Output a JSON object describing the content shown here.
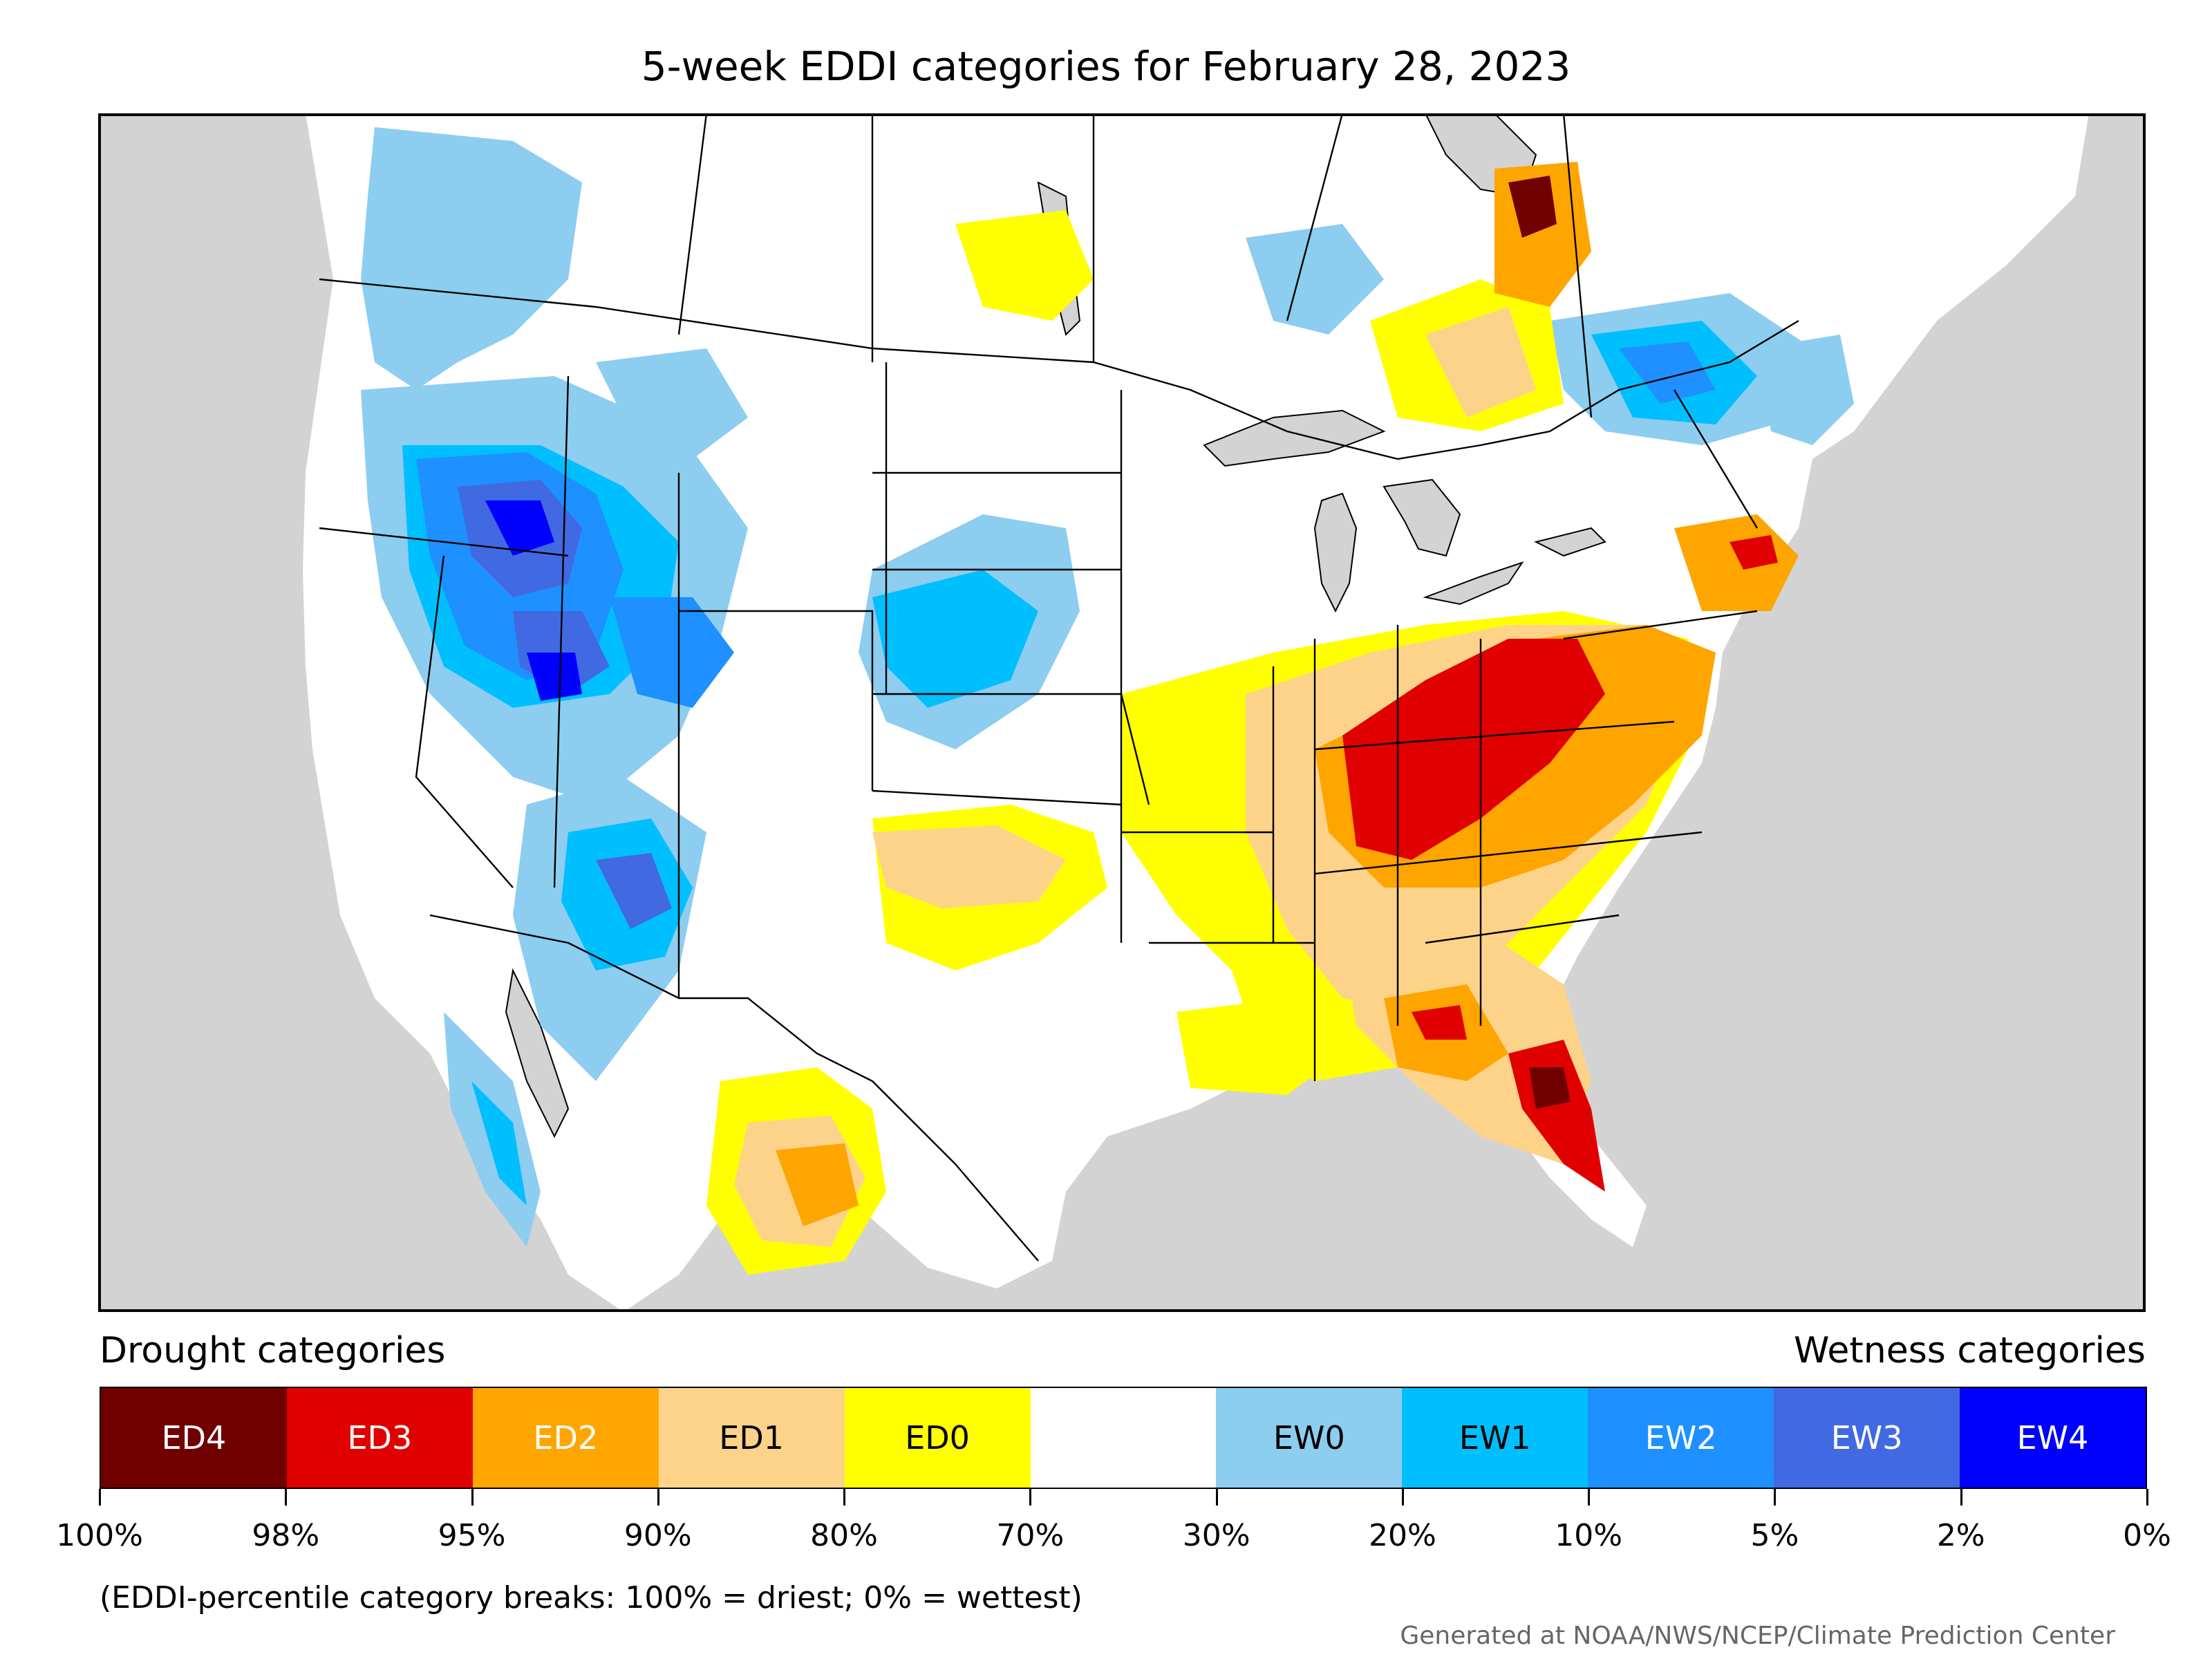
{
  "title": "5-week EDDI categories for February 28, 2023",
  "legend": {
    "drought_heading": "Drought categories",
    "wetness_heading": "Wetness categories",
    "categories": [
      {
        "label": "ED4",
        "color": "#700000",
        "text_color": "#ffffff"
      },
      {
        "label": "ED3",
        "color": "#e00000",
        "text_color": "#ffffff"
      },
      {
        "label": "ED2",
        "color": "#ffa500",
        "text_color": "#ffffff"
      },
      {
        "label": "ED1",
        "color": "#fdd38a",
        "text_color": "#000000"
      },
      {
        "label": "ED0",
        "color": "#ffff00",
        "text_color": "#000000"
      },
      {
        "label": "",
        "color": "#ffffff",
        "text_color": "#000000"
      },
      {
        "label": "EW0",
        "color": "#8dcdef",
        "text_color": "#000000"
      },
      {
        "label": "EW1",
        "color": "#00bfff",
        "text_color": "#000000"
      },
      {
        "label": "EW2",
        "color": "#1e90ff",
        "text_color": "#ffffff"
      },
      {
        "label": "EW3",
        "color": "#4169e1",
        "text_color": "#ffffff"
      },
      {
        "label": "EW4",
        "color": "#0000ff",
        "text_color": "#ffffff"
      }
    ],
    "tick_labels": [
      "100%",
      "98%",
      "95%",
      "90%",
      "80%",
      "70%",
      "30%",
      "20%",
      "10%",
      "5%",
      "2%",
      "0%"
    ],
    "breaks_note": "(EDDI-percentile category breaks: 100% = driest; 0% = wettest)"
  },
  "credit": "Generated at NOAA/NWS/NCEP/Climate Prediction Center",
  "map": {
    "region": "Contiguous United States and southern Canada / northern Mexico",
    "date": "February 28, 2023",
    "colors": {
      "land_outside_grid": "#d3d3d3",
      "water": "#d3d3d3",
      "borders": "#000000"
    }
  }
}
